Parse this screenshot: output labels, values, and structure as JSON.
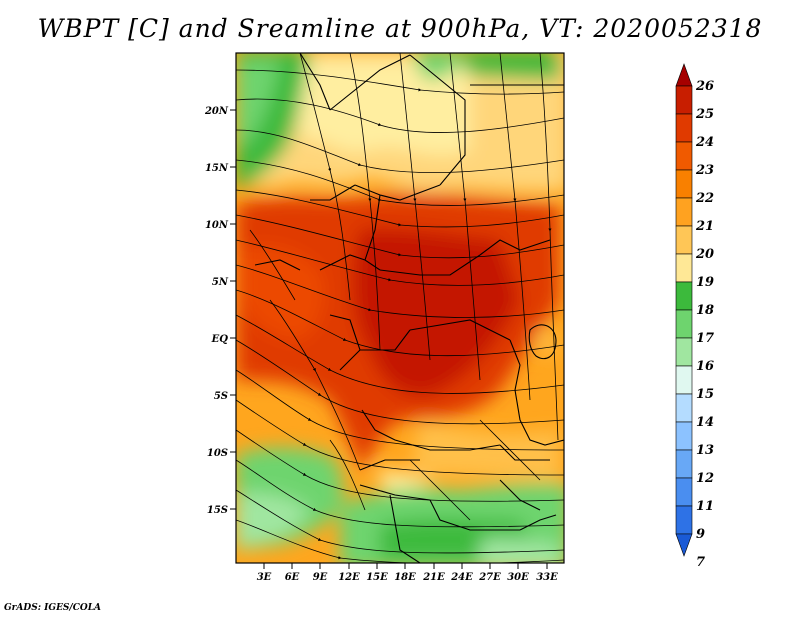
{
  "title": "WBPT [C] and Sreamline at 900hPa, VT: 2020052318",
  "credit": "GrADS: IGES/COLA",
  "map": {
    "variable": "Wet-bulb potential temperature",
    "units": "C",
    "level": "900hPa",
    "valid_time": "2020052318",
    "lat_labels": [
      "20N",
      "15N",
      "10N",
      "5N",
      "EQ",
      "5S",
      "10S",
      "15S"
    ],
    "lon_labels": [
      "3E",
      "6E",
      "9E",
      "12E",
      "15E",
      "18E",
      "21E",
      "24E",
      "27E",
      "30E",
      "33E"
    ],
    "regions": [
      {
        "name": "northwest-green",
        "value": 17
      },
      {
        "name": "north-yellow",
        "value": 19
      },
      {
        "name": "central-red",
        "value": 24
      },
      {
        "name": "southwest-green",
        "value": 17
      },
      {
        "name": "south-green",
        "value": 16
      }
    ]
  },
  "colorbar": {
    "labels": [
      "26",
      "25",
      "24",
      "23",
      "22",
      "21",
      "20",
      "19",
      "18",
      "17",
      "16",
      "15",
      "14",
      "13",
      "12",
      "11",
      "9",
      "7"
    ],
    "colors": [
      "#a50000",
      "#c81e00",
      "#e03a00",
      "#f05a00",
      "#f98000",
      "#ffa220",
      "#ffc656",
      "#ffe896",
      "#3cba3c",
      "#6ed46e",
      "#a0e6a0",
      "#e0f8f0",
      "#b4dcff",
      "#8cc2ff",
      "#68a8f6",
      "#4a8ef0",
      "#2e72e6",
      "#1a5ad6"
    ]
  }
}
